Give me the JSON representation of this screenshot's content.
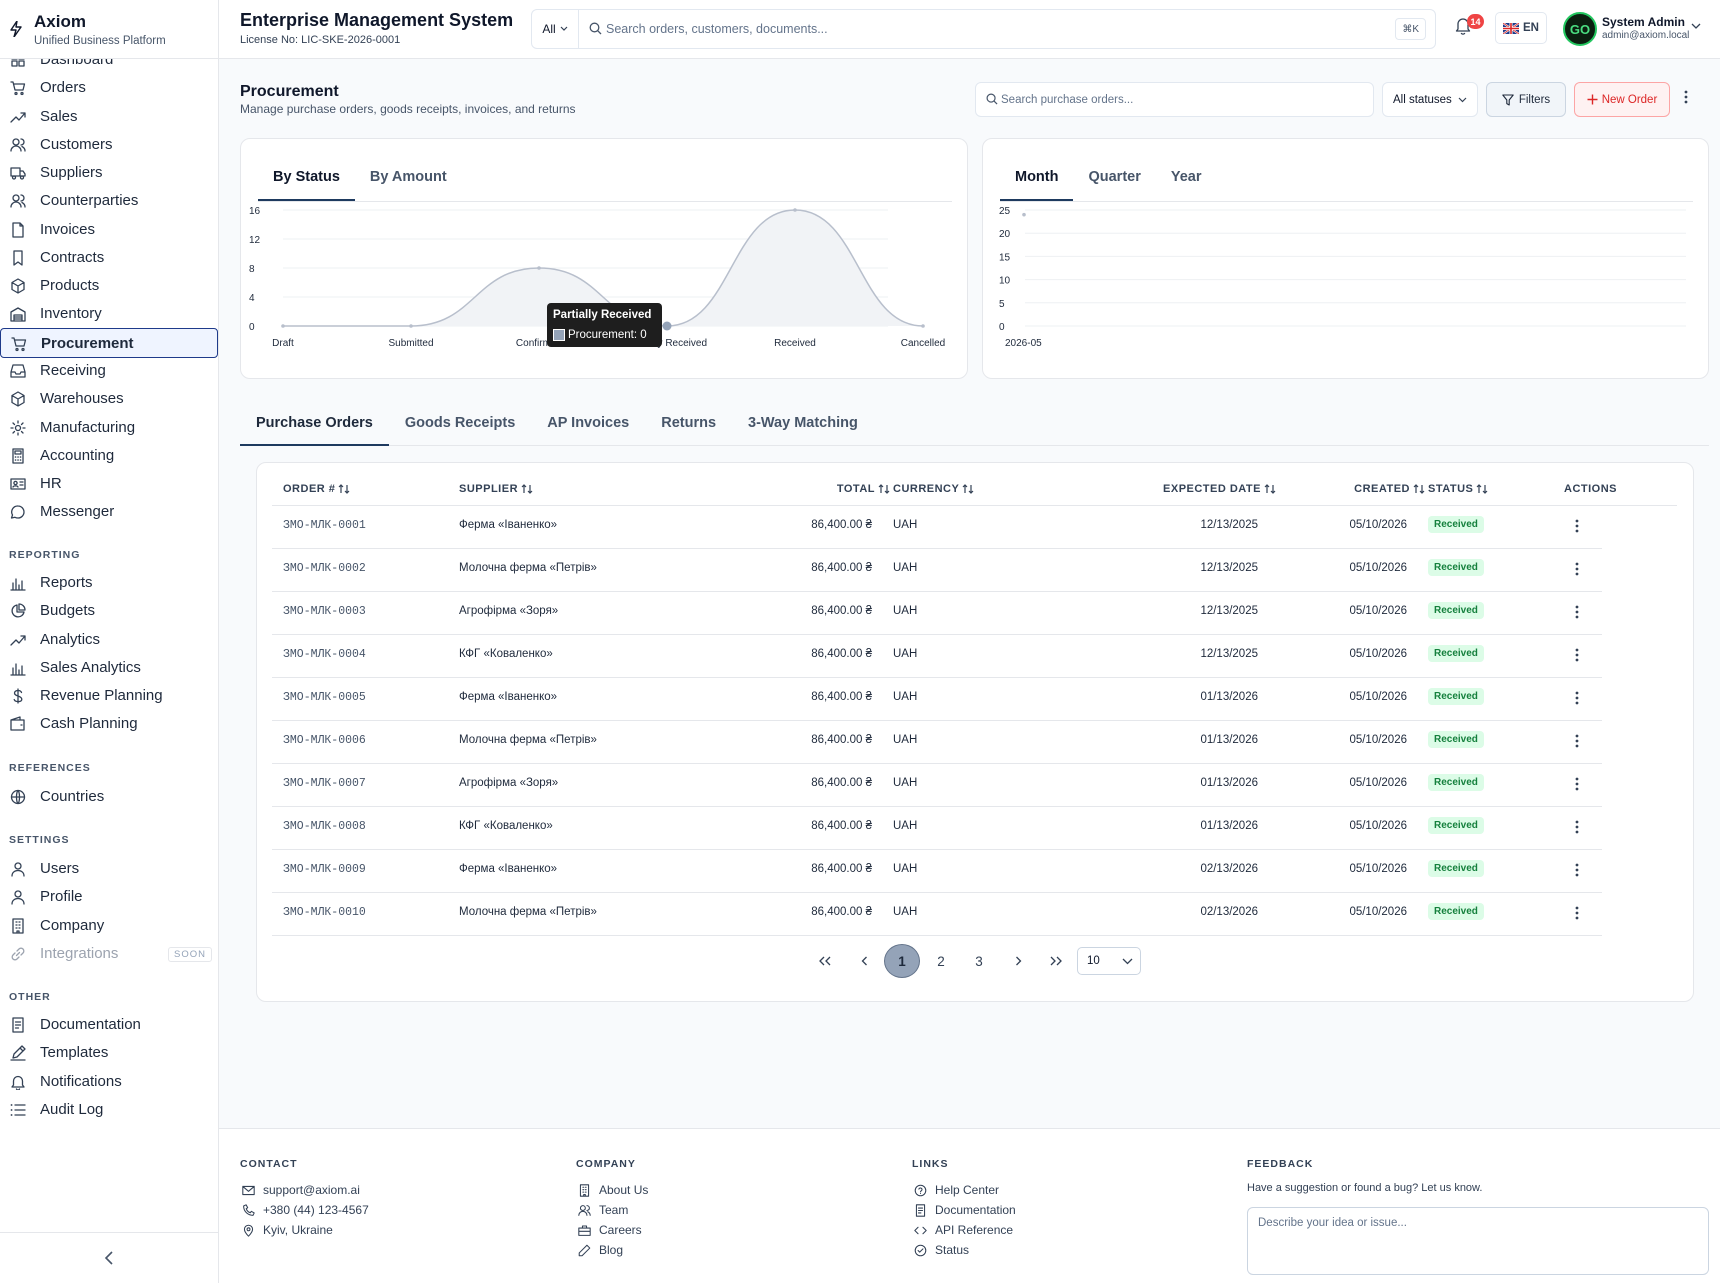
{
  "brand": {
    "name": "Axiom",
    "tagline": "Unified Business Platform"
  },
  "header": {
    "title": "Enterprise Management System",
    "license": "License No: LIC-SKE-2026-0001",
    "search_scope": "All",
    "search_placeholder": "Search orders, customers, documents...",
    "shortcut": "⌘K",
    "notifications_count": "14",
    "language": "EN",
    "user_name": "System Admin",
    "user_email": "admin@axiom.local",
    "avatar_text": "GO"
  },
  "sidebar": {
    "main": [
      "Dashboard",
      "Orders",
      "Sales",
      "Customers",
      "Suppliers",
      "Counterparties",
      "Invoices",
      "Contracts",
      "Products",
      "Inventory",
      "Procurement",
      "Receiving",
      "Warehouses",
      "Manufacturing",
      "Accounting",
      "HR",
      "Messenger"
    ],
    "active": "Procurement",
    "reporting_label": "REPORTING",
    "reporting": [
      "Reports",
      "Budgets",
      "Analytics",
      "Sales Analytics",
      "Revenue Planning",
      "Cash Planning"
    ],
    "references_label": "REFERENCES",
    "references": [
      "Countries"
    ],
    "settings_label": "SETTINGS",
    "settings": [
      "Users",
      "Profile",
      "Company",
      "Integrations"
    ],
    "soon_label": "SOON",
    "other_label": "OTHER",
    "other": [
      "Documentation",
      "Templates",
      "Notifications",
      "Audit Log"
    ]
  },
  "page": {
    "title": "Procurement",
    "subtitle": "Manage purchase orders, goods receipts, invoices, and returns",
    "search_placeholder": "Search purchase orders...",
    "status_filter": "All statuses",
    "filters_label": "Filters",
    "new_order_label": "New Order"
  },
  "chart_tabs_1": [
    "By Status",
    "By Amount"
  ],
  "chart_tabs_2": [
    "Month",
    "Quarter",
    "Year"
  ],
  "chart_data": [
    {
      "type": "area",
      "categories": [
        "Draft",
        "Submitted",
        "Confirmed",
        "Partially Received",
        "Received",
        "Cancelled"
      ],
      "series": [
        {
          "name": "Procurement",
          "values": [
            0,
            0,
            8,
            0,
            16,
            0
          ]
        }
      ],
      "ylim": [
        0,
        16
      ],
      "yticks": [
        0,
        4,
        8,
        12,
        16
      ],
      "grid": true,
      "tooltip": {
        "title": "Partially Received",
        "label": "Procurement: 0"
      }
    },
    {
      "type": "line",
      "categories": [
        "2026-05"
      ],
      "series": [
        {
          "values": [
            24
          ]
        }
      ],
      "ylim": [
        0,
        25
      ],
      "yticks": [
        0,
        5,
        10,
        15,
        20,
        25
      ],
      "grid": true
    }
  ],
  "section_tabs": [
    "Purchase Orders",
    "Goods Receipts",
    "AP Invoices",
    "Returns",
    "3-Way Matching"
  ],
  "table": {
    "columns": [
      "ORDER #",
      "SUPPLIER",
      "TOTAL",
      "CURRENCY",
      "EXPECTED DATE",
      "CREATED",
      "STATUS",
      "ACTIONS"
    ],
    "rows": [
      {
        "order": "ЗМО-МЛК-0001",
        "supplier": "Ферма «Іваненко»",
        "total": "86,400.00 ₴",
        "currency": "UAH",
        "expected": "12/13/2025",
        "created": "05/10/2026",
        "status": "Received"
      },
      {
        "order": "ЗМО-МЛК-0002",
        "supplier": "Молочна ферма «Петрів»",
        "total": "86,400.00 ₴",
        "currency": "UAH",
        "expected": "12/13/2025",
        "created": "05/10/2026",
        "status": "Received"
      },
      {
        "order": "ЗМО-МЛК-0003",
        "supplier": "Агрофірма «Зоря»",
        "total": "86,400.00 ₴",
        "currency": "UAH",
        "expected": "12/13/2025",
        "created": "05/10/2026",
        "status": "Received"
      },
      {
        "order": "ЗМО-МЛК-0004",
        "supplier": "КФГ «Коваленко»",
        "total": "86,400.00 ₴",
        "currency": "UAH",
        "expected": "12/13/2025",
        "created": "05/10/2026",
        "status": "Received"
      },
      {
        "order": "ЗМО-МЛК-0005",
        "supplier": "Ферма «Іваненко»",
        "total": "86,400.00 ₴",
        "currency": "UAH",
        "expected": "01/13/2026",
        "created": "05/10/2026",
        "status": "Received"
      },
      {
        "order": "ЗМО-МЛК-0006",
        "supplier": "Молочна ферма «Петрів»",
        "total": "86,400.00 ₴",
        "currency": "UAH",
        "expected": "01/13/2026",
        "created": "05/10/2026",
        "status": "Received"
      },
      {
        "order": "ЗМО-МЛК-0007",
        "supplier": "Агрофірма «Зоря»",
        "total": "86,400.00 ₴",
        "currency": "UAH",
        "expected": "01/13/2026",
        "created": "05/10/2026",
        "status": "Received"
      },
      {
        "order": "ЗМО-МЛК-0008",
        "supplier": "КФГ «Коваленко»",
        "total": "86,400.00 ₴",
        "currency": "UAH",
        "expected": "01/13/2026",
        "created": "05/10/2026",
        "status": "Received"
      },
      {
        "order": "ЗМО-МЛК-0009",
        "supplier": "Ферма «Іваненко»",
        "total": "86,400.00 ₴",
        "currency": "UAH",
        "expected": "02/13/2026",
        "created": "05/10/2026",
        "status": "Received"
      },
      {
        "order": "ЗМО-МЛК-0010",
        "supplier": "Молочна ферма «Петрів»",
        "total": "86,400.00 ₴",
        "currency": "UAH",
        "expected": "02/13/2026",
        "created": "05/10/2026",
        "status": "Received"
      }
    ]
  },
  "pagination": {
    "pages": [
      "1",
      "2",
      "3"
    ],
    "current": "1",
    "page_size": "10"
  },
  "footer": {
    "contact_label": "CONTACT",
    "contact": [
      "support@axiom.ai",
      "+380 (44) 123-4567",
      "Kyiv, Ukraine"
    ],
    "company_label": "COMPANY",
    "company": [
      "About Us",
      "Team",
      "Careers",
      "Blog"
    ],
    "links_label": "LINKS",
    "links": [
      "Help Center",
      "Documentation",
      "API Reference",
      "Status"
    ],
    "feedback_label": "FEEDBACK",
    "feedback_text": "Have a suggestion or found a bug? Let us know.",
    "feedback_placeholder": "Describe your idea or issue..."
  },
  "colors": {
    "accent": "#1e3a5f",
    "danger": "#dc2626",
    "success": "#15803d"
  }
}
